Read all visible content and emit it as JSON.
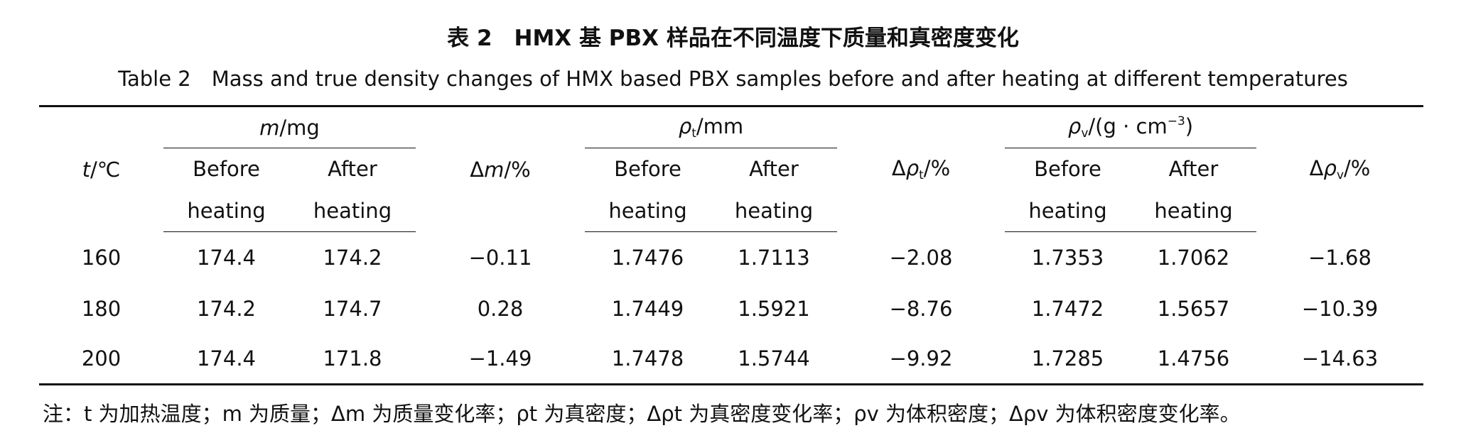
{
  "title_cn": "表 2　HMX 基 PBX 样品在不同温度下质量和真密度变化",
  "title_en": "Table 2　Mass and true density changes of HMX based PBX samples before and after heating at different temperatures",
  "header": {
    "t": {
      "symbol": "t",
      "unit": "/℃"
    },
    "m": {
      "symbol": "m",
      "unit": "/mg",
      "before": [
        "Before",
        "heating"
      ],
      "after": [
        "After",
        "heating"
      ]
    },
    "dm": {
      "prefix": "Δ",
      "symbol": "m",
      "unit": "/%"
    },
    "rt": {
      "symbol": "ρ",
      "sub": "t",
      "unit": "/mm",
      "before": [
        "Before",
        "heating"
      ],
      "after": [
        "After",
        "heating"
      ]
    },
    "drt": {
      "prefix": "Δ",
      "symbol": "ρ",
      "sub": "t",
      "unit": "/%"
    },
    "rv": {
      "symbol": "ρ",
      "sub": "v",
      "unit": "/(g · cm",
      "sup": "−3",
      "suffix": ")",
      "before": [
        "Before",
        "heating"
      ],
      "after": [
        "After",
        "heating"
      ]
    },
    "drv": {
      "prefix": "Δ",
      "symbol": "ρ",
      "sub": "v",
      "unit": "/%"
    }
  },
  "table": {
    "rows": [
      [
        "160",
        "174.4",
        "174.2",
        "−0.11",
        "1.7476",
        "1.7113",
        "−2.08",
        "1.7353",
        "1.7062",
        "−1.68"
      ],
      [
        "180",
        "174.2",
        "174.7",
        "0.28",
        "1.7449",
        "1.5921",
        "−8.76",
        "1.7472",
        "1.5657",
        "−10.39"
      ],
      [
        "200",
        "174.4",
        "171.8",
        "−1.49",
        "1.7478",
        "1.5744",
        "−9.92",
        "1.7285",
        "1.4756",
        "−14.63"
      ]
    ]
  },
  "note": "注：t 为加热温度；m 为质量；Δm 为质量变化率；ρt 为真密度；Δρt 为真密度变化率；ρv 为体积密度；Δρv 为体积密度变化率。"
}
